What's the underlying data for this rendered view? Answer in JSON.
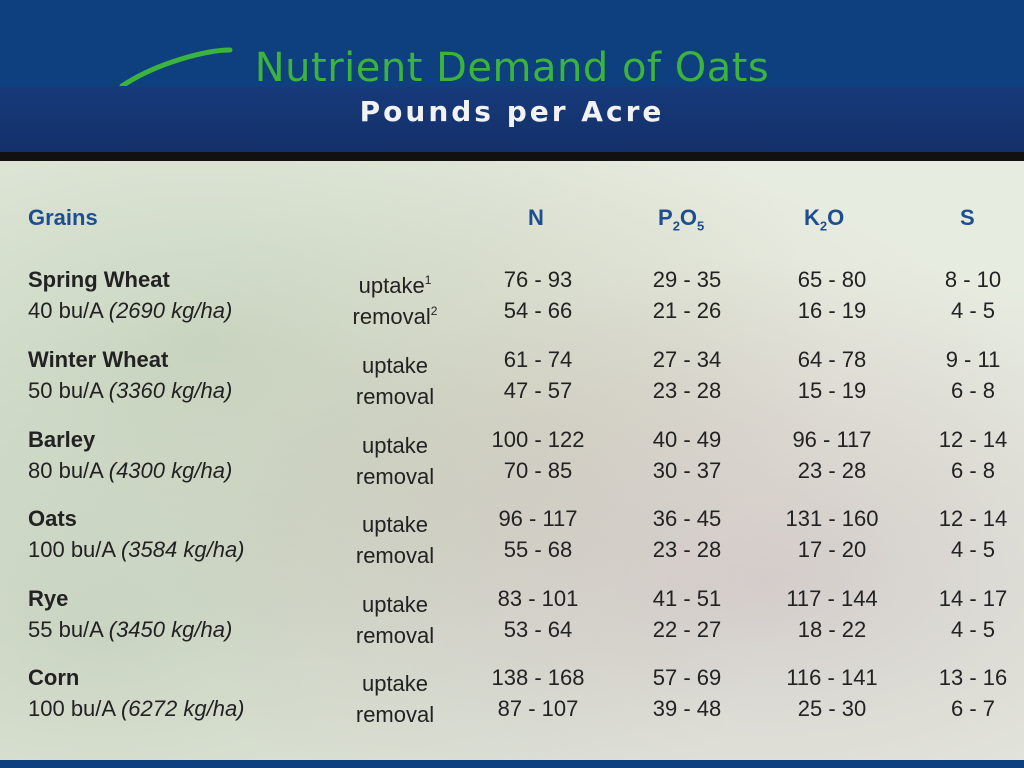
{
  "title": "Nutrient Demand of Oats",
  "subtitle": "Pounds per Acre",
  "colors": {
    "title_green": "#3cb43c",
    "band_blue": "#0e3f7e",
    "header_blue": "#1d4f8f"
  },
  "table": {
    "headers": {
      "grains": "Grains",
      "n": "N",
      "p_main": "P",
      "p_sub1": "2",
      "p_o": "O",
      "p_sub2": "5",
      "k_main": "K",
      "k_sub": "2",
      "k_o": "O",
      "s": "S"
    },
    "rows": [
      {
        "grain": "Spring Wheat",
        "yield": "40 bu/A ",
        "yield_metric": "(2690 kg/ha)",
        "label1": "uptake",
        "mark1": "1",
        "label2": "removal",
        "mark2": "2",
        "uptake": [
          "76 - 93",
          "29 - 35",
          "65 - 80",
          "8 - 10"
        ],
        "removal": [
          "54 - 66",
          "21 - 26",
          "16 - 19",
          "4 - 5"
        ]
      },
      {
        "grain": "Winter Wheat",
        "yield": "50 bu/A ",
        "yield_metric": "(3360 kg/ha)",
        "label1": "uptake",
        "mark1": "",
        "label2": "removal",
        "mark2": "",
        "uptake": [
          "61 - 74",
          "27 - 34",
          "64 - 78",
          "9 - 11"
        ],
        "removal": [
          "47 - 57",
          "23 - 28",
          "15 - 19",
          "6 - 8"
        ]
      },
      {
        "grain": "Barley",
        "yield": "80 bu/A ",
        "yield_metric": "(4300 kg/ha)",
        "label1": "uptake",
        "mark1": "",
        "label2": "removal",
        "mark2": "",
        "uptake": [
          "100 - 122",
          "40 - 49",
          "96 - 117",
          "12 - 14"
        ],
        "removal": [
          "70 - 85",
          "30 - 37",
          "23 - 28",
          "6 - 8"
        ]
      },
      {
        "grain": "Oats",
        "yield": "100 bu/A ",
        "yield_metric": "(3584 kg/ha)",
        "label1": "uptake",
        "mark1": "",
        "label2": "removal",
        "mark2": "",
        "uptake": [
          "96 - 117",
          "36 - 45",
          "131 - 160",
          "12 - 14"
        ],
        "removal": [
          "55 - 68",
          "23 - 28",
          "17 - 20",
          "4 - 5"
        ]
      },
      {
        "grain": "Rye",
        "yield": "55 bu/A ",
        "yield_metric": "(3450 kg/ha)",
        "label1": "uptake",
        "mark1": "",
        "label2": "removal",
        "mark2": "",
        "uptake": [
          "83 - 101",
          "41 - 51",
          "117 - 144",
          "14 - 17"
        ],
        "removal": [
          "53 - 64",
          "22 - 27",
          "18 - 22",
          "4 - 5"
        ]
      },
      {
        "grain": "Corn",
        "yield": "100 bu/A ",
        "yield_metric": "(6272 kg/ha)",
        "label1": "uptake",
        "mark1": "",
        "label2": "removal",
        "mark2": "",
        "uptake": [
          "138 - 168",
          "57 - 69",
          "116 - 141",
          "13 - 16"
        ],
        "removal": [
          "87 - 107",
          "39 - 48",
          "25 - 30",
          "6 - 7"
        ]
      }
    ]
  }
}
